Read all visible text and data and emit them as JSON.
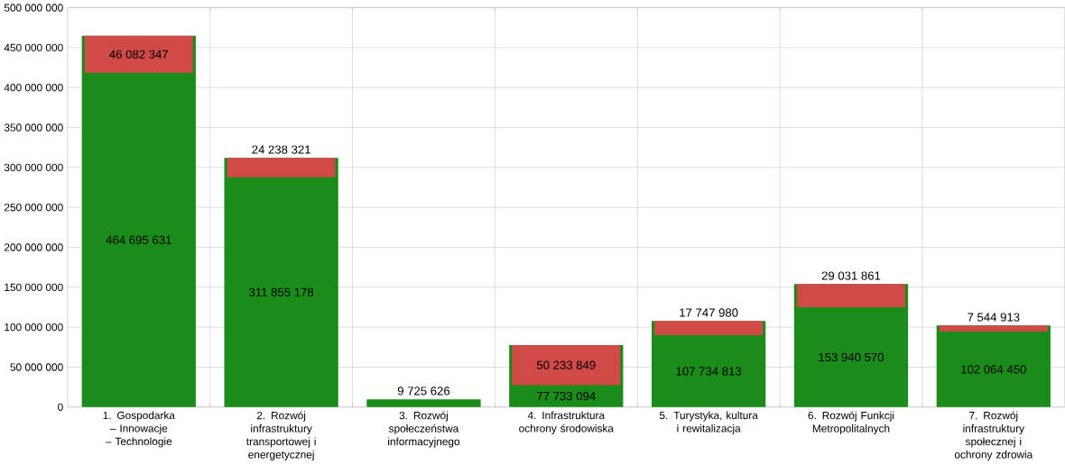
{
  "chart_data": {
    "type": "bar",
    "categories": [
      "1. Gospodarka – Innowacje – Technologie",
      "2. Rozwój infrastruktury transportowej i energetycznej",
      "3. Rozwój społeczeństwa informacyjnego",
      "4. Infrastruktura ochrony środowiska",
      "5. Turystyka, kultura i rewitalizacja",
      "6. Rozwój Funkcji Metropolitalnych",
      "7. Rozwój infrastruktury społecznej i ochrony zdrowia"
    ],
    "series": [
      {
        "color": "#1a8c1a",
        "values": [
          464695631,
          311855178,
          9725626,
          77733094,
          107734813,
          153940570,
          102064450
        ],
        "value_labels": [
          "464 695 631",
          "311 855 178",
          "9 725 626",
          "77 733 094",
          "107 734 813",
          "153 940 570",
          "102 064 450"
        ]
      },
      {
        "color": "#d04a48",
        "base": [
          418613284,
          287616857,
          null,
          27499245,
          89986833,
          124908709,
          94519537
        ],
        "values": [
          46082347,
          24238321,
          null,
          50233849,
          17747980,
          29031861,
          7544913
        ],
        "value_labels": [
          "46 082 347",
          "24 238 321",
          null,
          "50 233 849",
          "17 747 980",
          "29 031 861",
          "7 544 913"
        ]
      }
    ],
    "ylim": [
      0,
      500000000
    ],
    "yticks": [
      {
        "value": 0,
        "label": "0"
      },
      {
        "value": 50000000,
        "label": "50 000 000"
      },
      {
        "value": 100000000,
        "label": "100 000 000"
      },
      {
        "value": 150000000,
        "label": "150 000 000"
      },
      {
        "value": 200000000,
        "label": "200 000 000"
      },
      {
        "value": 250000000,
        "label": "250 000 000"
      },
      {
        "value": 300000000,
        "label": "300 000 000"
      },
      {
        "value": 350000000,
        "label": "350 000 000"
      },
      {
        "value": 400000000,
        "label": "400 000 000"
      },
      {
        "value": 450000000,
        "label": "450 000 000"
      },
      {
        "value": 500000000,
        "label": "500 000 000"
      }
    ],
    "grid": true
  }
}
